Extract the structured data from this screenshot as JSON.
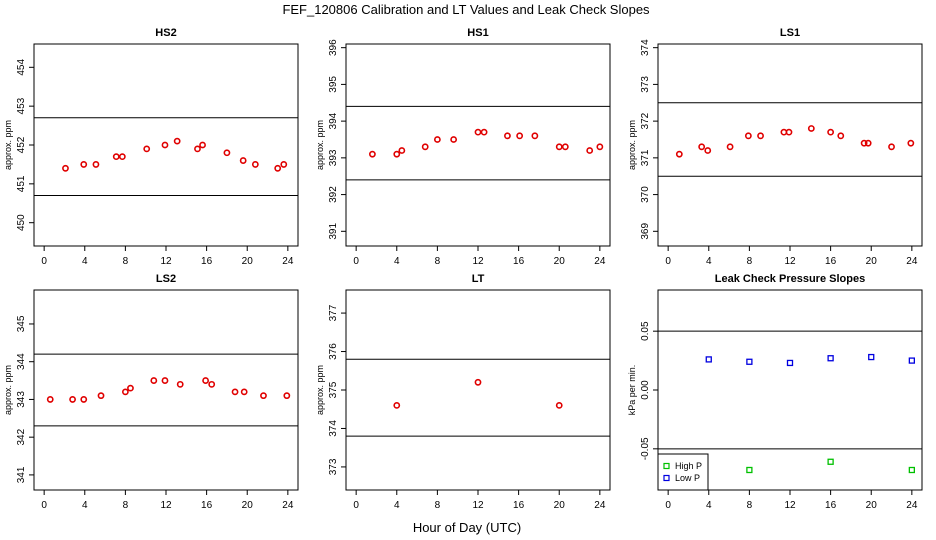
{
  "title": "FEF_120806  Calibration and LT Values and Leak Check Slopes",
  "xlabel": "Hour of Day (UTC)",
  "colors": {
    "cal_points": "#e00000",
    "high_p": "#00c000",
    "low_p": "#0000e0",
    "axes": "#000000"
  },
  "chart_data": [
    {
      "type": "scatter",
      "title": "HS2",
      "ylabel": "approx. ppm",
      "xlim": [
        -1,
        25
      ],
      "ylim": [
        449.4,
        454.6
      ],
      "xticks": [
        0,
        4,
        8,
        12,
        16,
        20,
        24
      ],
      "yticks": [
        450,
        451,
        452,
        453,
        454
      ],
      "hlines": [
        452.7,
        450.7
      ],
      "grid": false,
      "series": [
        {
          "marker": "circle",
          "color": "#e00000",
          "x": [
            2.1,
            3.9,
            5.1,
            7.1,
            7.7,
            10.1,
            11.9,
            13.1,
            15.1,
            15.6,
            18,
            19.6,
            20.8,
            23,
            23.6
          ],
          "y": [
            451.4,
            451.5,
            451.5,
            451.7,
            451.7,
            451.9,
            452.0,
            452.1,
            451.9,
            452.0,
            451.8,
            451.6,
            451.5,
            451.4,
            451.5
          ]
        }
      ]
    },
    {
      "type": "scatter",
      "title": "HS1",
      "ylabel": "approx. ppm",
      "xlim": [
        -1,
        25
      ],
      "ylim": [
        390.6,
        396.1
      ],
      "xticks": [
        0,
        4,
        8,
        12,
        16,
        20,
        24
      ],
      "yticks": [
        391,
        392,
        393,
        394,
        395,
        396
      ],
      "hlines": [
        394.4,
        392.4
      ],
      "grid": false,
      "series": [
        {
          "marker": "circle",
          "color": "#e00000",
          "x": [
            1.6,
            4,
            4.5,
            6.8,
            8,
            9.6,
            12,
            12.6,
            14.9,
            16.1,
            17.6,
            20,
            20.6,
            23,
            24
          ],
          "y": [
            393.1,
            393.1,
            393.2,
            393.3,
            393.5,
            393.5,
            393.7,
            393.7,
            393.6,
            393.6,
            393.6,
            393.3,
            393.3,
            393.2,
            393.3
          ]
        }
      ]
    },
    {
      "type": "scatter",
      "title": "LS1",
      "ylabel": "approx. ppm",
      "xlim": [
        -1,
        25
      ],
      "ylim": [
        368.6,
        374.1
      ],
      "xticks": [
        0,
        4,
        8,
        12,
        16,
        20,
        24
      ],
      "yticks": [
        369,
        370,
        371,
        372,
        373,
        374
      ],
      "hlines": [
        372.5,
        370.5
      ],
      "grid": false,
      "series": [
        {
          "marker": "circle",
          "color": "#e00000",
          "x": [
            1.1,
            3.3,
            3.9,
            6.1,
            7.9,
            9.1,
            11.4,
            11.9,
            14.1,
            16,
            17,
            19.3,
            19.7,
            22,
            23.9
          ],
          "y": [
            371.1,
            371.3,
            371.2,
            371.3,
            371.6,
            371.6,
            371.7,
            371.7,
            371.8,
            371.7,
            371.6,
            371.4,
            371.4,
            371.3,
            371.4
          ]
        }
      ]
    },
    {
      "type": "scatter",
      "title": "LS2",
      "ylabel": "approx. ppm",
      "xlim": [
        -1,
        25
      ],
      "ylim": [
        340.6,
        345.9
      ],
      "xticks": [
        0,
        4,
        8,
        12,
        16,
        20,
        24
      ],
      "yticks": [
        341,
        342,
        343,
        344,
        345
      ],
      "hlines": [
        344.2,
        342.3
      ],
      "grid": false,
      "series": [
        {
          "marker": "circle",
          "color": "#e00000",
          "x": [
            0.6,
            2.8,
            3.9,
            5.6,
            8,
            8.5,
            10.8,
            11.9,
            13.4,
            15.9,
            16.5,
            18.8,
            19.7,
            21.6,
            23.9
          ],
          "y": [
            343.0,
            343.0,
            343.0,
            343.1,
            343.2,
            343.3,
            343.5,
            343.5,
            343.4,
            343.5,
            343.4,
            343.2,
            343.2,
            343.1,
            343.1
          ]
        }
      ]
    },
    {
      "type": "scatter",
      "title": "LT",
      "ylabel": "approx. ppm",
      "xlim": [
        -1,
        25
      ],
      "ylim": [
        372.4,
        377.6
      ],
      "xticks": [
        0,
        4,
        8,
        12,
        16,
        20,
        24
      ],
      "yticks": [
        373,
        374,
        375,
        376,
        377
      ],
      "hlines": [
        375.8,
        373.8
      ],
      "grid": false,
      "series": [
        {
          "marker": "circle",
          "color": "#e00000",
          "x": [
            4,
            12,
            20
          ],
          "y": [
            374.6,
            375.2,
            374.6
          ]
        }
      ]
    },
    {
      "type": "scatter",
      "title": "Leak Check Pressure Slopes",
      "ylabel": "kPa per min.",
      "xlim": [
        -1,
        25
      ],
      "ylim": [
        -0.085,
        0.085
      ],
      "xticks": [
        0,
        4,
        8,
        12,
        16,
        20,
        24
      ],
      "yticks": [
        -0.05,
        0.0,
        0.05
      ],
      "ytick_labels": [
        "-0.05",
        "0.00",
        "0.05"
      ],
      "hlines": [
        0.05,
        -0.05
      ],
      "grid": false,
      "legend": {
        "position": "bottom-left",
        "entries": [
          "High P",
          "Low P"
        ]
      },
      "series": [
        {
          "name": "High P",
          "marker": "square",
          "color": "#00c000",
          "x": [
            8,
            16,
            24
          ],
          "y": [
            -0.068,
            -0.061,
            -0.068
          ]
        },
        {
          "name": "Low P",
          "marker": "square",
          "color": "#0000e0",
          "x": [
            4,
            8,
            12,
            16,
            20,
            24
          ],
          "y": [
            0.026,
            0.024,
            0.023,
            0.027,
            0.028,
            0.025
          ]
        }
      ]
    }
  ]
}
